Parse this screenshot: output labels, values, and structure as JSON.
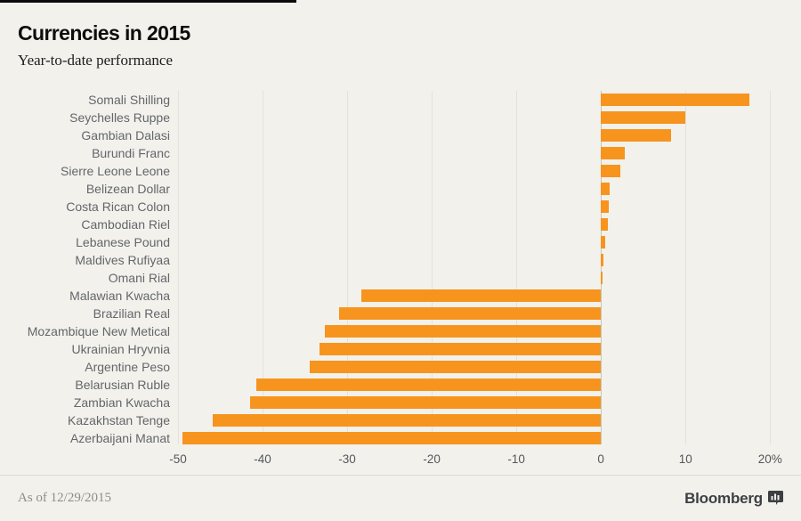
{
  "header": {
    "title": "Currencies in 2015",
    "subtitle": "Year-to-date performance"
  },
  "footer": {
    "as_of": "As of 12/29/2015",
    "brand": "Bloomberg"
  },
  "colors": {
    "background": "#f2f1ec",
    "bar": "#f7941d",
    "grid": "#e3e2da",
    "zero_line": "#c6c5bd",
    "category_label": "#63666a",
    "tick_label": "#55585b",
    "title": "#0d0d0d",
    "footer_text": "#8c8f88",
    "brand": "#3c4043"
  },
  "chart_data": {
    "type": "bar",
    "orientation": "horizontal",
    "title": "Currencies in 2015",
    "subtitle": "Year-to-date performance",
    "unit": "%",
    "categories": [
      "Somali Shilling",
      "Seychelles Ruppe",
      "Gambian Dalasi",
      "Burundi Franc",
      "Sierre Leone Leone",
      "Belizean Dollar",
      "Costa Rican Colon",
      "Cambodian Riel",
      "Lebanese Pound",
      "Maldives Rufiyaa",
      "Omani Rial",
      "Malawian Kwacha",
      "Brazilian Real",
      "Mozambique New Metical",
      "Ukrainian Hryvnia",
      "Argentine Peso",
      "Belarusian Ruble",
      "Zambian Kwacha",
      "Kazakhstan Tenge",
      "Azerbaijani Manat"
    ],
    "values": [
      17.6,
      10.0,
      8.3,
      2.8,
      2.3,
      1.0,
      0.9,
      0.8,
      0.5,
      0.35,
      0.15,
      -28.3,
      -31.0,
      -32.6,
      -33.3,
      -34.4,
      -40.7,
      -41.5,
      -45.9,
      -49.5
    ],
    "xlim": [
      -50,
      20.5
    ],
    "ticks": [
      -50,
      -40,
      -30,
      -20,
      -10,
      0,
      10,
      20
    ],
    "tick_labels": [
      "-50",
      "-40",
      "-30",
      "-20",
      "-10",
      "0",
      "10",
      "20%"
    ],
    "grid": true,
    "legend": "none"
  }
}
